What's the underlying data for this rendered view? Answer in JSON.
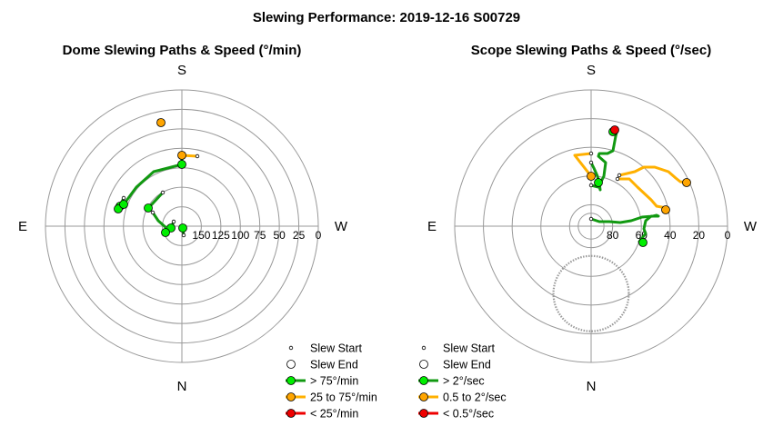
{
  "figure": {
    "title": "Slewing Performance: 2019-12-16 S00729"
  },
  "legend_common": {
    "start": "Slew Start",
    "end": "Slew End"
  },
  "colors": {
    "fast": "#00ee00",
    "fast_line": "#119911",
    "mid": "#ffa500",
    "mid_line": "#ffb000",
    "slow": "#ee0000",
    "slow_line": "#ee0000",
    "grid": "#999999",
    "limit": "#999999"
  },
  "chart_data": [
    {
      "type": "polar-scatter",
      "title": "Dome Slewing Paths & Speed (°/min)",
      "directions": {
        "top": "S",
        "right": "W",
        "bottom": "N",
        "left": "E"
      },
      "radial_axis": "altitude",
      "rlim": [
        0,
        175
      ],
      "rings": [
        25,
        50,
        75,
        100,
        125,
        150
      ],
      "radial_tick_labels": [
        "0",
        "25",
        "50",
        "75",
        "100",
        "125",
        "150"
      ],
      "legend": [
        "Slew Start",
        "Slew End",
        "> 75°/min",
        "25 to 75°/min",
        "< 25°/min"
      ],
      "series": [
        {
          "speed": "fast",
          "path": [
            {
              "x": 2,
              "y": -10
            },
            {
              "x": 1,
              "y": -2
            }
          ]
        },
        {
          "speed": "fast",
          "path": [
            {
              "x": -9,
              "y": 5
            },
            {
              "x": -12,
              "y": -2
            }
          ]
        },
        {
          "speed": "fast",
          "path": [
            {
              "x": -32,
              "y": 15
            },
            {
              "x": -26,
              "y": 6
            },
            {
              "x": -17,
              "y": -2
            },
            {
              "x": -18,
              "y": -7
            }
          ]
        },
        {
          "speed": "fast",
          "path": [
            {
              "x": -21,
              "y": 37
            },
            {
              "x": -33,
              "y": 24
            },
            {
              "x": -37,
              "y": 20
            }
          ]
        },
        {
          "speed": "fast",
          "path": [
            {
              "x": -64,
              "y": 31
            },
            {
              "x": -68,
              "y": 22
            }
          ]
        },
        {
          "speed": "fast",
          "path": [
            {
              "x": -66,
              "y": 21
            },
            {
              "x": -70,
              "y": 19
            }
          ]
        },
        {
          "speed": "fast",
          "path": [
            {
              "x": 0,
              "y": 68
            },
            {
              "x": -31,
              "y": 60
            },
            {
              "x": -50,
              "y": 43
            },
            {
              "x": -64,
              "y": 24
            }
          ]
        },
        {
          "speed": "fast",
          "path": [
            {
              "x": 0,
              "y": 80
            },
            {
              "x": 0,
              "y": 68
            }
          ]
        },
        {
          "speed": "mid",
          "path": [
            {
              "x": 17,
              "y": 77
            },
            {
              "x": 0,
              "y": 78
            }
          ]
        },
        {
          "speed": "mid",
          "path": [
            {
              "x": -25,
              "y": 116
            },
            {
              "x": -23,
              "y": 114
            }
          ]
        }
      ]
    },
    {
      "type": "polar-scatter",
      "title": "Scope Slewing Paths & Speed (°/sec)",
      "directions": {
        "top": "S",
        "right": "W",
        "bottom": "N",
        "left": "E"
      },
      "radial_axis": "altitude",
      "rlim": [
        0,
        95
      ],
      "rings": [
        20,
        40,
        60,
        80
      ],
      "radial_tick_labels": [
        "0",
        "20",
        "40",
        "60",
        "80"
      ],
      "legend": [
        "Slew Start",
        "Slew End",
        "> 2°/sec",
        "0.5 to 2°/sec",
        "< 0.5°/sec"
      ],
      "limit_circle": {
        "cx": 0,
        "cy": -47,
        "r": 25
      },
      "inner_circle": {
        "r": 9
      },
      "series": [
        {
          "speed": "fast",
          "path": [
            {
              "x": 0,
              "y": 8
            },
            {
              "x": 9,
              "y": 5
            },
            {
              "x": 20,
              "y": 5
            },
            {
              "x": 32,
              "y": 4
            },
            {
              "x": 44,
              "y": 6
            },
            {
              "x": 50,
              "y": 8
            },
            {
              "x": 56,
              "y": 10
            },
            {
              "x": 68,
              "y": 11
            },
            {
              "x": 72,
              "y": 12
            },
            {
              "x": 74,
              "y": 11
            },
            {
              "x": 66,
              "y": 11
            },
            {
              "x": 60,
              "y": 6
            },
            {
              "x": 58,
              "y": -3
            },
            {
              "x": 60,
              "y": -8
            },
            {
              "x": 53,
              "y": -17
            },
            {
              "x": 57,
              "y": -18
            }
          ]
        },
        {
          "speed": "fast",
          "path": [
            {
              "x": 0,
              "y": 45
            },
            {
              "x": 8,
              "y": 43
            },
            {
              "x": 14,
              "y": 55
            },
            {
              "x": 16,
              "y": 70
            },
            {
              "x": 8,
              "y": 77
            },
            {
              "x": 9,
              "y": 80
            },
            {
              "x": 18,
              "y": 80
            },
            {
              "x": 24,
              "y": 83
            },
            {
              "x": 27,
              "y": 99
            },
            {
              "x": 28,
              "y": 103
            },
            {
              "x": 24,
              "y": 104
            }
          ]
        },
        {
          "speed": "fast",
          "path": [
            {
              "x": 0,
              "y": 70
            },
            {
              "x": 3,
              "y": 64
            },
            {
              "x": 7,
              "y": 55
            },
            {
              "x": 9,
              "y": 47
            },
            {
              "x": 10,
              "y": 40
            },
            {
              "x": 8,
              "y": 48
            }
          ]
        },
        {
          "speed": "mid",
          "path": [
            {
              "x": 29,
              "y": 52
            },
            {
              "x": 42,
              "y": 52
            },
            {
              "x": 51,
              "y": 43
            },
            {
              "x": 66,
              "y": 29
            },
            {
              "x": 72,
              "y": 22
            },
            {
              "x": 83,
              "y": 20
            },
            {
              "x": 82,
              "y": 18
            }
          ]
        },
        {
          "speed": "mid",
          "path": [
            {
              "x": 31,
              "y": 56
            },
            {
              "x": 48,
              "y": 60
            },
            {
              "x": 58,
              "y": 65
            },
            {
              "x": 70,
              "y": 65
            },
            {
              "x": 85,
              "y": 60
            },
            {
              "x": 93,
              "y": 53
            },
            {
              "x": 98,
              "y": 49
            },
            {
              "x": 105,
              "y": 48
            }
          ]
        },
        {
          "speed": "mid",
          "path": [
            {
              "x": 0,
              "y": 80
            },
            {
              "x": -18,
              "y": 78
            },
            {
              "x": 0,
              "y": 55
            }
          ]
        },
        {
          "speed": "slow",
          "path": [
            {
              "x": 25,
              "y": 108
            },
            {
              "x": 26,
              "y": 106
            }
          ]
        }
      ]
    }
  ]
}
